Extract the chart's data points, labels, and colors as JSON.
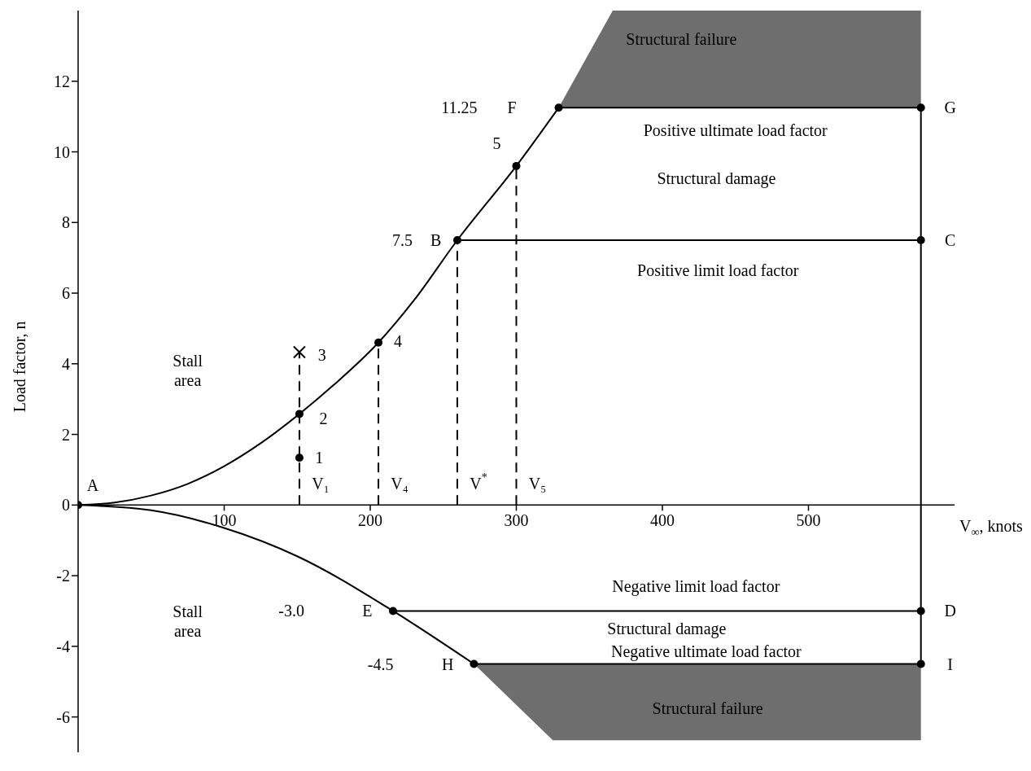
{
  "chart_data": {
    "type": "line",
    "xlabel": "V$_{∞}$, knots",
    "ylabel": "Load factor, n",
    "xlim": [
      0,
      600
    ],
    "xticks": [
      100,
      200,
      300,
      400,
      500
    ],
    "ylim": [
      -7,
      14
    ],
    "yticks": [
      -6,
      -4,
      -2,
      0,
      2,
      4,
      6,
      8,
      10,
      12
    ],
    "grid": false,
    "legend": false,
    "series": [
      {
        "type": "line",
        "color": "#000000",
        "line_style": "solid",
        "x": [
          329,
          366,
          577
        ],
        "values": [
          11.25,
          11.25,
          11.25
        ],
        "lower": [
          11.25,
          11.25,
          11.25
        ],
        "upper": [
          11.25,
          14,
          14
        ]
      },
      {
        "type": "line",
        "color": "#000000",
        "line_style": "solid",
        "x": [
          271,
          325,
          577
        ],
        "values": [
          -4.5,
          -4.5,
          -4.5
        ],
        "lower": [
          -4.5,
          -6.66,
          -6.66
        ],
        "upper": [
          -4.5,
          -4.5,
          -4.5
        ]
      },
      {
        "color": "#000000",
        "line_style": "solid",
        "x": [
          0,
          25,
          50,
          75,
          100,
          125,
          151.5,
          175,
          205.6,
          230,
          259.6,
          300,
          329
        ],
        "values": [
          0,
          0.07,
          0.27,
          0.6,
          1.1,
          1.75,
          2.58,
          3.4,
          4.6,
          5.8,
          7.5,
          9.6,
          11.25
        ]
      },
      {
        "color": "#000000",
        "line_style": "solid",
        "x": [
          0,
          50,
          100,
          150,
          215.6,
          271
        ],
        "values": [
          0,
          -0.15,
          -0.65,
          -1.45,
          -3.0,
          -4.5
        ]
      },
      {
        "color": "#000000",
        "line_style": "solid",
        "x": [
          259.6,
          577
        ],
        "values": [
          7.5,
          7.5
        ]
      },
      {
        "color": "#000000",
        "line_style": "solid",
        "x": [
          215.6,
          577
        ],
        "values": [
          -3.0,
          -3.0
        ]
      },
      {
        "color": "#000000",
        "line_style": "solid",
        "x": [
          577,
          577
        ],
        "values": [
          -4.5,
          11.25
        ]
      },
      {
        "color": "#000000",
        "line_style": "dashed",
        "x": [
          151.5,
          151.5
        ],
        "values": [
          0,
          4.33
        ]
      },
      {
        "color": "#000000",
        "line_style": "dashed",
        "x": [
          205.6,
          205.6
        ],
        "values": [
          0,
          4.6
        ]
      },
      {
        "color": "#000000",
        "line_style": "dashed",
        "x": [
          259.6,
          259.6
        ],
        "values": [
          0,
          7.5
        ]
      },
      {
        "color": "#000000",
        "line_style": "dashed",
        "x": [
          300,
          300
        ],
        "values": [
          0,
          9.6
        ]
      },
      {
        "type": "scatter",
        "color": "#000000",
        "marker": "circle",
        "x": [
          0,
          151.5,
          151.5,
          205.6,
          259.6,
          300,
          329,
          577,
          577,
          215.6,
          577,
          271,
          577
        ],
        "values": [
          0,
          1.34,
          2.58,
          4.6,
          7.5,
          9.6,
          11.25,
          11.25,
          7.5,
          -3.0,
          -3.0,
          -4.5,
          -4.5
        ]
      },
      {
        "type": "scatter",
        "color": "#000000",
        "marker": "cross",
        "x": [
          151.5
        ],
        "values": [
          4.33
        ]
      }
    ],
    "annotations": [
      "A",
      "1",
      "2",
      "3",
      "4",
      {
        "text": "5",
        "x": 300,
        "y": 9.6
      },
      "7.5",
      "B",
      "11.25",
      "F",
      "G",
      "C",
      "D",
      "I",
      "-3.0",
      "E",
      "-4.5",
      "H",
      {
        "text": "V₁",
        "x": 151.5,
        "y": 0
      },
      {
        "text": "V₄",
        "x": 205.6,
        "y": 0
      },
      {
        "text": "V$^{*}$",
        "x": 259.6,
        "y": 0
      },
      {
        "text": "V₅",
        "x": 300,
        "y": 0
      },
      "Stall\narea",
      "Stall\narea",
      "Structural failure",
      "Positive ultimate load factor",
      "Structural damage",
      "Positive limit load factor",
      "Negative limit load factor",
      "Structural damage",
      "Negative ultimate load factor",
      "Structural failure"
    ]
  }
}
